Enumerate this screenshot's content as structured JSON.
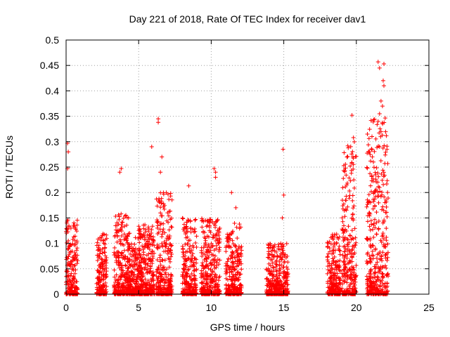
{
  "chart_data": {
    "type": "scatter",
    "title": "Day 221 of 2018, Rate Of TEC Index for receiver dav1",
    "xlabel": "GPS time / hours",
    "ylabel": "ROTI / TECUs",
    "xlim": [
      0,
      25
    ],
    "ylim": [
      0,
      0.5
    ],
    "xticks": [
      "0",
      "5",
      "10",
      "15",
      "20",
      "25"
    ],
    "yticks": [
      "0",
      "0.05",
      "0.1",
      "0.15",
      "0.2",
      "0.25",
      "0.3",
      "0.35",
      "0.4",
      "0.45",
      "0.5"
    ],
    "grid": true,
    "marker": "+",
    "color": "#ff0000",
    "clusters": [
      {
        "x": [
          0.0,
          0.8
        ],
        "y": [
          0.0,
          0.15
        ]
      },
      {
        "x": [
          2.1,
          2.8
        ],
        "y": [
          0.0,
          0.12
        ]
      },
      {
        "x": [
          3.3,
          4.3
        ],
        "y": [
          0.0,
          0.16
        ]
      },
      {
        "x": [
          4.2,
          5.2
        ],
        "y": [
          0.0,
          0.12
        ]
      },
      {
        "x": [
          5.0,
          6.1
        ],
        "y": [
          0.0,
          0.14
        ]
      },
      {
        "x": [
          6.2,
          7.3
        ],
        "y": [
          0.0,
          0.2
        ]
      },
      {
        "x": [
          8.0,
          9.0
        ],
        "y": [
          0.0,
          0.15
        ]
      },
      {
        "x": [
          9.3,
          10.6
        ],
        "y": [
          0.0,
          0.15
        ]
      },
      {
        "x": [
          11.0,
          12.1
        ],
        "y": [
          0.0,
          0.14
        ]
      },
      {
        "x": [
          13.8,
          15.3
        ],
        "y": [
          0.0,
          0.1
        ]
      },
      {
        "x": [
          18.0,
          18.9
        ],
        "y": [
          0.0,
          0.12
        ]
      },
      {
        "x": [
          19.0,
          20.0
        ],
        "y": [
          0.0,
          0.3
        ]
      },
      {
        "x": [
          20.7,
          22.2
        ],
        "y": [
          0.0,
          0.35
        ]
      }
    ],
    "peaks": [
      {
        "x": 0.1,
        "y": 0.297
      },
      {
        "x": 0.15,
        "y": 0.28
      },
      {
        "x": 0.1,
        "y": 0.247
      },
      {
        "x": 3.8,
        "y": 0.247
      },
      {
        "x": 3.7,
        "y": 0.24
      },
      {
        "x": 4.3,
        "y": 0.15
      },
      {
        "x": 5.9,
        "y": 0.29
      },
      {
        "x": 6.35,
        "y": 0.345
      },
      {
        "x": 6.35,
        "y": 0.338
      },
      {
        "x": 6.6,
        "y": 0.27
      },
      {
        "x": 6.5,
        "y": 0.24
      },
      {
        "x": 8.45,
        "y": 0.213
      },
      {
        "x": 10.2,
        "y": 0.247
      },
      {
        "x": 10.3,
        "y": 0.24
      },
      {
        "x": 10.3,
        "y": 0.23
      },
      {
        "x": 11.4,
        "y": 0.2
      },
      {
        "x": 11.7,
        "y": 0.17
      },
      {
        "x": 14.95,
        "y": 0.285
      },
      {
        "x": 15.0,
        "y": 0.195
      },
      {
        "x": 14.9,
        "y": 0.15
      },
      {
        "x": 19.7,
        "y": 0.352
      },
      {
        "x": 19.8,
        "y": 0.308
      },
      {
        "x": 21.5,
        "y": 0.457
      },
      {
        "x": 21.6,
        "y": 0.445
      },
      {
        "x": 21.9,
        "y": 0.453
      },
      {
        "x": 21.85,
        "y": 0.42
      },
      {
        "x": 21.9,
        "y": 0.41
      },
      {
        "x": 21.7,
        "y": 0.38
      },
      {
        "x": 21.8,
        "y": 0.37
      },
      {
        "x": 21.6,
        "y": 0.355
      },
      {
        "x": 21.5,
        "y": 0.34
      },
      {
        "x": 21.7,
        "y": 0.32
      },
      {
        "x": 20.9,
        "y": 0.28
      },
      {
        "x": 21.1,
        "y": 0.27
      },
      {
        "x": 21.6,
        "y": 0.29
      }
    ]
  }
}
